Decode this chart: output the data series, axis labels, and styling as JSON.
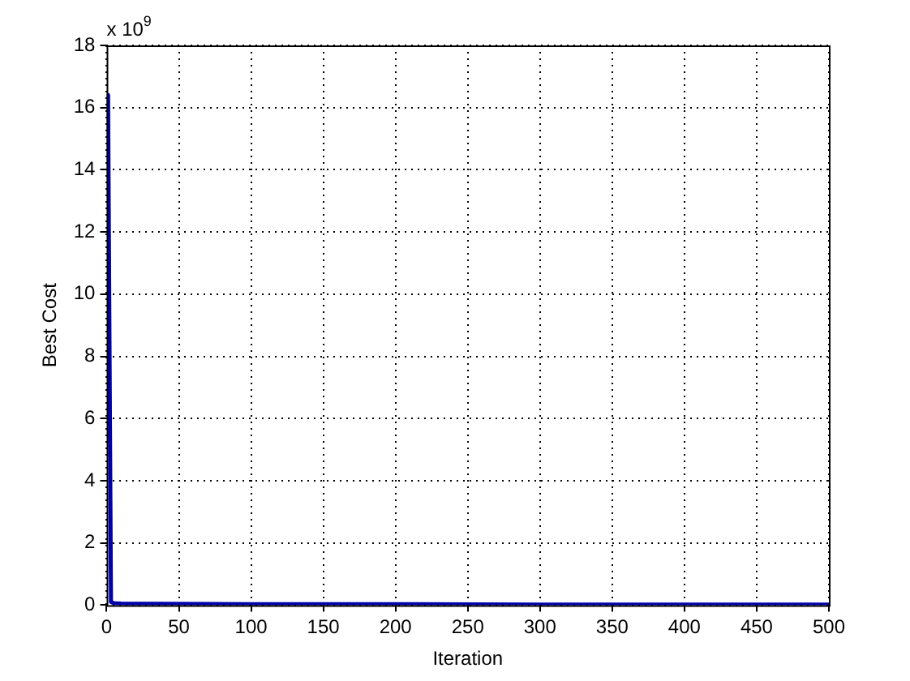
{
  "chart_data": {
    "type": "line",
    "xlabel": "Iteration",
    "ylabel": "Best Cost",
    "annotations": [
      "x 10$^{9}$"
    ],
    "xlim": [
      0,
      500
    ],
    "xticks": [
      0,
      50,
      100,
      150,
      200,
      250,
      300,
      350,
      400,
      450,
      500
    ],
    "ylim": [
      0,
      18
    ],
    "yticks": [
      0,
      2,
      4,
      6,
      8,
      10,
      12,
      14,
      16,
      18
    ],
    "grid": true,
    "line_style": "solid",
    "marker": "none",
    "series": [
      {
        "color": "#0000aa",
        "x": [
          1,
          2,
          3,
          5,
          10,
          30,
          100,
          200,
          300,
          400,
          500
        ],
        "values": [
          16.4,
          8.2,
          0.1,
          0.06,
          0.05,
          0.04,
          0.03,
          0.03,
          0.02,
          0.02,
          0.02
        ]
      }
    ]
  }
}
